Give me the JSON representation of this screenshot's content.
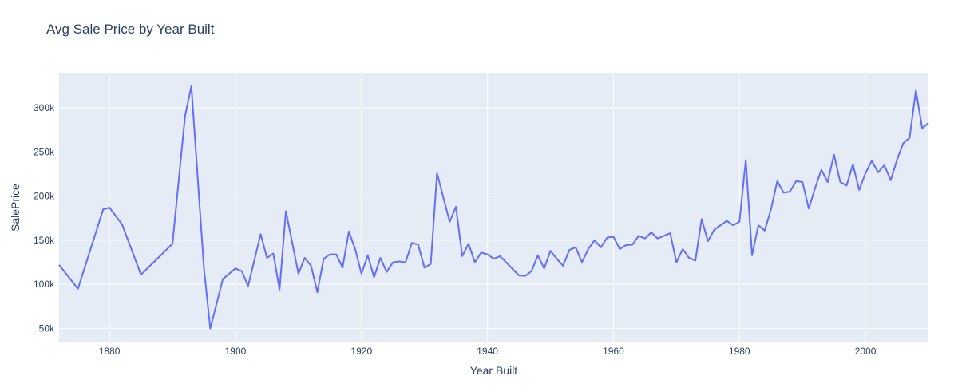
{
  "chart_data": {
    "type": "line",
    "title": "Avg Sale Price by Year Built",
    "xlabel": "Year Built",
    "ylabel": "SalePrice",
    "xlim": [
      1872,
      2010
    ],
    "ylim": [
      35000,
      340000
    ],
    "x_ticks": [
      1880,
      1900,
      1920,
      1940,
      1960,
      1980,
      2000
    ],
    "x_tick_labels": [
      "1880",
      "1900",
      "1920",
      "1940",
      "1960",
      "1980",
      "2000"
    ],
    "y_ticks": [
      50000,
      100000,
      150000,
      200000,
      250000,
      300000
    ],
    "y_tick_labels": [
      "50k",
      "100k",
      "150k",
      "200k",
      "250k",
      "300k"
    ],
    "grid": true,
    "line_color": "#636efa",
    "plot_bg": "#e5ecf6",
    "grid_color": "#ffffff",
    "text_color": "#2a3f5f",
    "series": [
      {
        "x": [
          1872,
          1875,
          1879,
          1880,
          1882,
          1885,
          1890,
          1892,
          1893,
          1895,
          1896,
          1898,
          1900,
          1901,
          1902,
          1904,
          1905,
          1906,
          1907,
          1908,
          1910,
          1911,
          1912,
          1913,
          1914,
          1915,
          1916,
          1917,
          1918,
          1919,
          1920,
          1921,
          1922,
          1923,
          1924,
          1925,
          1926,
          1927,
          1928,
          1929,
          1930,
          1931,
          1932,
          1934,
          1935,
          1936,
          1937,
          1938,
          1939,
          1940,
          1941,
          1942,
          1945,
          1946,
          1947,
          1948,
          1949,
          1950,
          1951,
          1952,
          1953,
          1954,
          1955,
          1956,
          1957,
          1958,
          1959,
          1960,
          1961,
          1962,
          1963,
          1964,
          1965,
          1966,
          1967,
          1968,
          1969,
          1970,
          1971,
          1972,
          1973,
          1974,
          1975,
          1976,
          1977,
          1978,
          1979,
          1980,
          1981,
          1982,
          1983,
          1984,
          1985,
          1986,
          1987,
          1988,
          1989,
          1990,
          1991,
          1992,
          1993,
          1994,
          1995,
          1996,
          1997,
          1998,
          1999,
          2000,
          2001,
          2002,
          2003,
          2004,
          2005,
          2006,
          2007,
          2008,
          2009,
          2010
        ],
        "y": [
          122000,
          95000,
          185000,
          187000,
          168000,
          111000,
          146000,
          291000,
          325000,
          118000,
          50000,
          106000,
          118000,
          115000,
          98000,
          157000,
          130000,
          135000,
          94000,
          183000,
          112000,
          130000,
          121000,
          91000,
          129000,
          134000,
          134000,
          119000,
          160000,
          140000,
          112000,
          133000,
          108000,
          130000,
          114000,
          125000,
          126000,
          125000,
          147000,
          145000,
          119000,
          123000,
          226000,
          171000,
          188000,
          132000,
          146000,
          125000,
          136000,
          134000,
          129000,
          132000,
          110000,
          109500,
          115000,
          133000,
          118000,
          138000,
          129000,
          121000,
          139000,
          142000,
          125000,
          140000,
          150000,
          142000,
          153000,
          154000,
          140000,
          144500,
          145000,
          155000,
          152000,
          159000,
          152000,
          155000,
          158000,
          125000,
          140000,
          130000,
          127000,
          174000,
          149000,
          162000,
          167000,
          172000,
          167000,
          171000,
          241000,
          133000,
          167000,
          161000,
          185000,
          217000,
          204000,
          205000,
          217000,
          216000,
          186000,
          209000,
          230000,
          216000,
          247000,
          216000,
          212000,
          236000,
          207000,
          226000,
          240000,
          227000,
          235000,
          218000,
          241000,
          260000,
          266000,
          320000,
          277000,
          283000
        ]
      }
    ]
  }
}
